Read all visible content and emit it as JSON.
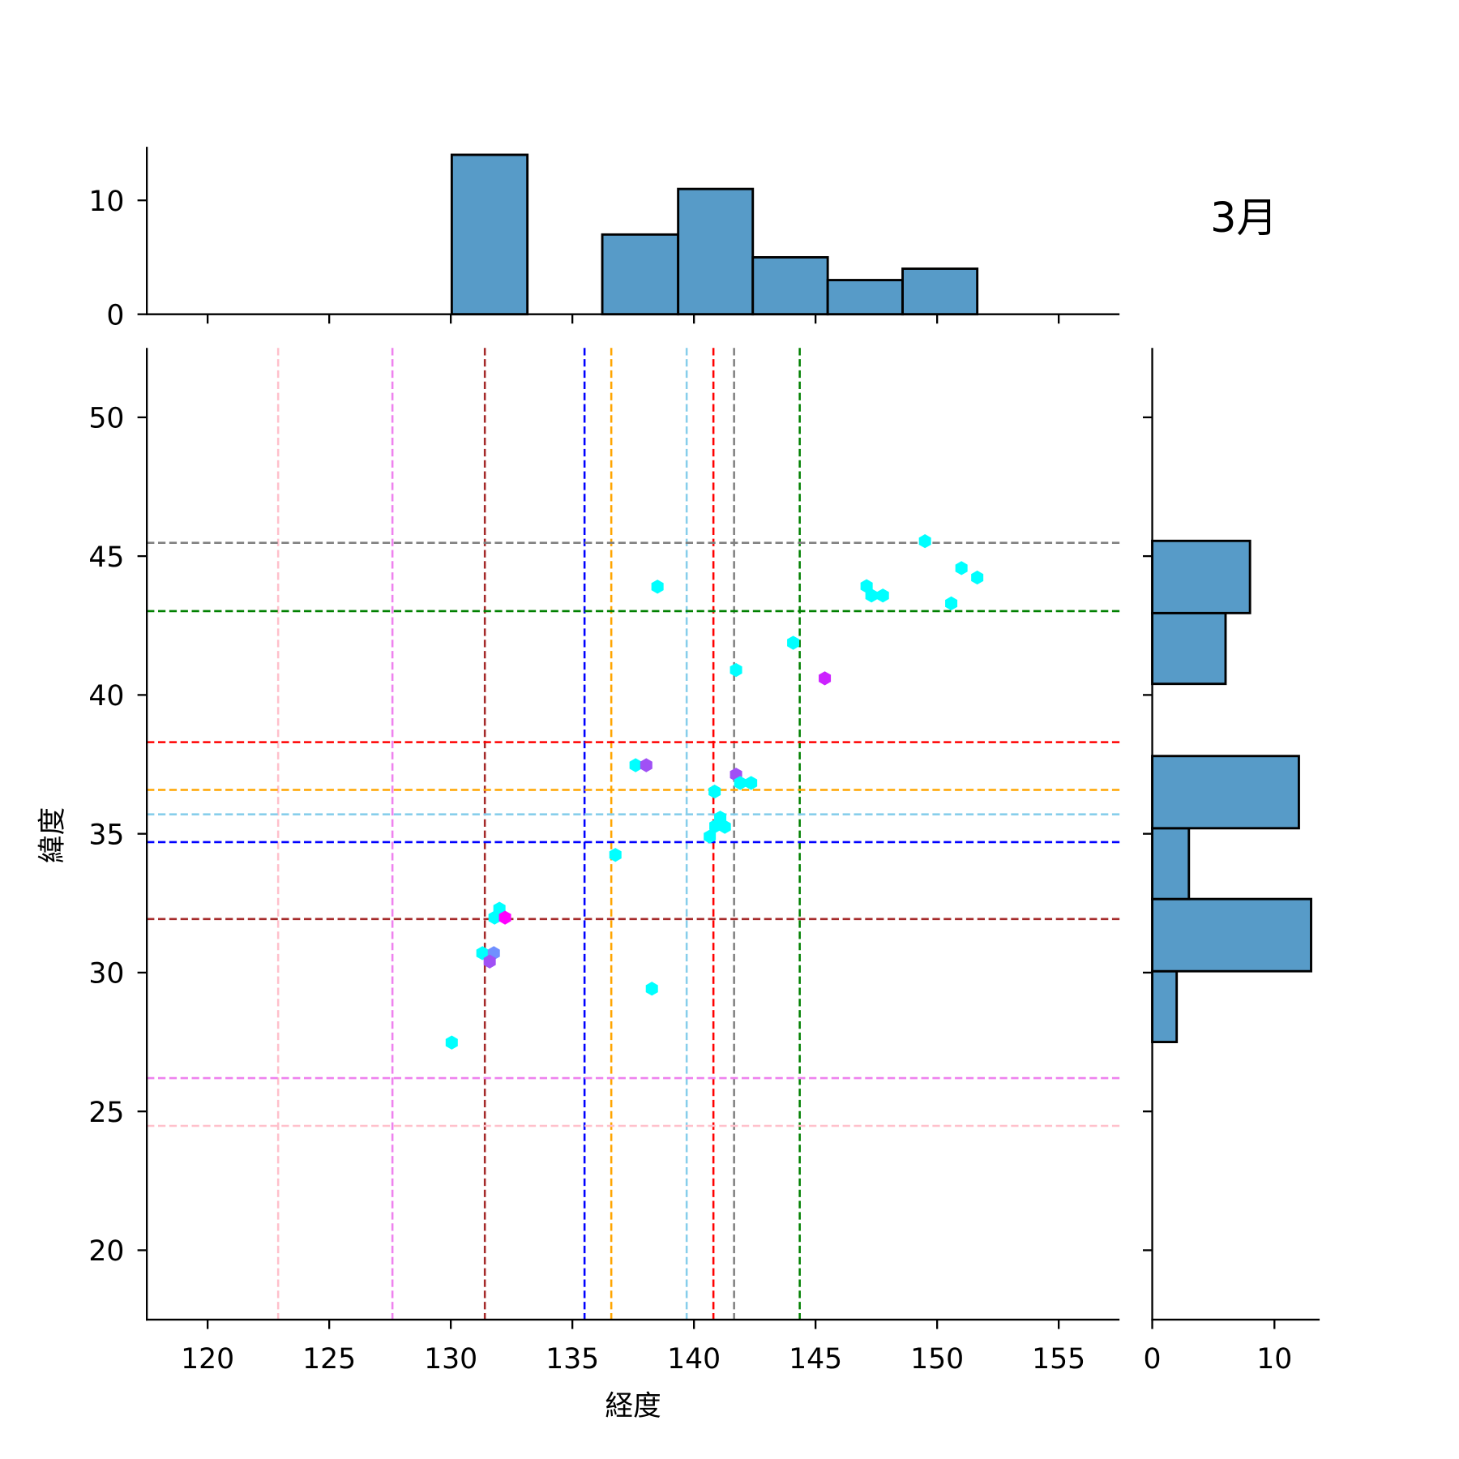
{
  "chart_data": {
    "type": "scatter",
    "title": "3月",
    "xlabel": "経度",
    "ylabel": "緯度",
    "xlim": [
      117.5,
      157.5
    ],
    "ylim": [
      17.5,
      52.5
    ],
    "xticks": [
      120,
      125,
      130,
      135,
      140,
      145,
      150,
      155
    ],
    "yticks": [
      20,
      25,
      30,
      35,
      40,
      45,
      50
    ],
    "grid": false,
    "points": [
      {
        "x": 130.04,
        "y": 27.48,
        "color": "#00ffff"
      },
      {
        "x": 131.3,
        "y": 30.7,
        "color": "#00ffff"
      },
      {
        "x": 131.77,
        "y": 30.7,
        "color": "#7090ff"
      },
      {
        "x": 131.6,
        "y": 30.4,
        "color": "#a050f5"
      },
      {
        "x": 131.8,
        "y": 31.98,
        "color": "#00ffff"
      },
      {
        "x": 132.0,
        "y": 32.3,
        "color": "#00ffff"
      },
      {
        "x": 132.23,
        "y": 31.98,
        "color": "#ff00ff"
      },
      {
        "x": 136.77,
        "y": 34.24,
        "color": "#00ffff"
      },
      {
        "x": 137.6,
        "y": 37.47,
        "color": "#00ffff"
      },
      {
        "x": 138.04,
        "y": 37.47,
        "color": "#a050f5"
      },
      {
        "x": 138.27,
        "y": 29.42,
        "color": "#00ffff"
      },
      {
        "x": 138.5,
        "y": 43.9,
        "color": "#00ffff"
      },
      {
        "x": 140.85,
        "y": 36.52,
        "color": "#00ffff"
      },
      {
        "x": 140.65,
        "y": 34.9,
        "color": "#00ffff"
      },
      {
        "x": 140.88,
        "y": 35.28,
        "color": "#00ffff"
      },
      {
        "x": 141.08,
        "y": 35.58,
        "color": "#00ffff"
      },
      {
        "x": 141.27,
        "y": 35.25,
        "color": "#00ffff"
      },
      {
        "x": 141.73,
        "y": 37.13,
        "color": "#a050f5"
      },
      {
        "x": 141.9,
        "y": 36.83,
        "color": "#00ffff"
      },
      {
        "x": 142.35,
        "y": 36.83,
        "color": "#00ffff"
      },
      {
        "x": 141.73,
        "y": 40.9,
        "color": "#00ffff"
      },
      {
        "x": 144.08,
        "y": 41.88,
        "color": "#00ffff"
      },
      {
        "x": 145.38,
        "y": 40.6,
        "color": "#cc22ff"
      },
      {
        "x": 147.1,
        "y": 43.92,
        "color": "#00ffff"
      },
      {
        "x": 147.3,
        "y": 43.58,
        "color": "#00ffff"
      },
      {
        "x": 147.77,
        "y": 43.58,
        "color": "#00ffff"
      },
      {
        "x": 149.5,
        "y": 45.54,
        "color": "#00ffff"
      },
      {
        "x": 150.58,
        "y": 43.3,
        "color": "#00ffff"
      },
      {
        "x": 151.0,
        "y": 44.57,
        "color": "#00ffff"
      },
      {
        "x": 151.65,
        "y": 44.23,
        "color": "#00ffff"
      }
    ],
    "vlines": [
      {
        "x": 122.9,
        "color": "#ffc0cb"
      },
      {
        "x": 127.6,
        "color": "#ee82ee"
      },
      {
        "x": 131.4,
        "color": "#a52a2a"
      },
      {
        "x": 135.5,
        "color": "#0000ff"
      },
      {
        "x": 136.6,
        "color": "#ffa500"
      },
      {
        "x": 139.7,
        "color": "#87ceeb"
      },
      {
        "x": 140.8,
        "color": "#ff0000"
      },
      {
        "x": 141.65,
        "color": "#808080"
      },
      {
        "x": 144.35,
        "color": "#008000"
      }
    ],
    "hlines": [
      {
        "y": 45.48,
        "color": "#808080"
      },
      {
        "y": 43.02,
        "color": "#008000"
      },
      {
        "y": 38.3,
        "color": "#ff0000"
      },
      {
        "y": 36.58,
        "color": "#ffa500"
      },
      {
        "y": 35.7,
        "color": "#87ceeb"
      },
      {
        "y": 34.7,
        "color": "#0000ff"
      },
      {
        "y": 31.93,
        "color": "#a52a2a"
      },
      {
        "y": 26.2,
        "color": "#ee82ee"
      },
      {
        "y": 24.48,
        "color": "#ffc0cb"
      }
    ],
    "top_hist": {
      "edges": [
        130.04,
        133.15,
        136.23,
        139.35,
        142.42,
        145.5,
        148.58,
        151.65
      ],
      "counts": [
        14,
        0,
        7,
        11,
        5,
        3,
        4
      ],
      "ylim": [
        0,
        14.7
      ],
      "yticks": [
        0,
        10
      ],
      "color": "#579bc8"
    },
    "right_hist": {
      "edges": [
        27.5,
        30.05,
        32.65,
        35.2,
        37.8,
        40.4,
        42.95,
        45.55
      ],
      "counts": [
        2,
        13,
        3,
        12,
        0,
        6,
        8
      ],
      "xlim": [
        0,
        13.7
      ],
      "xticks": [
        0,
        10
      ],
      "color": "#579bc8"
    }
  }
}
